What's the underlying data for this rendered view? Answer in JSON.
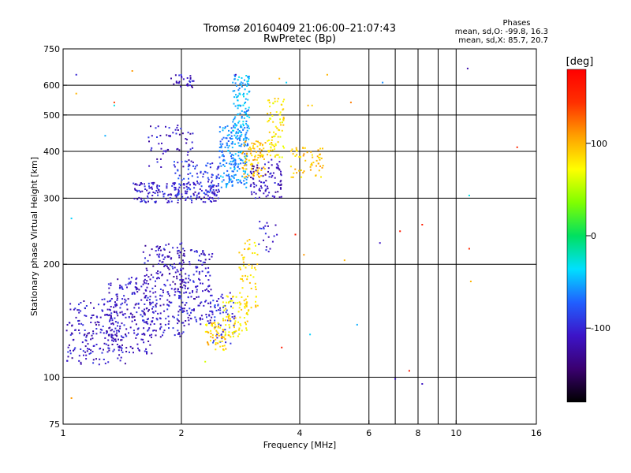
{
  "chart_data": {
    "type": "scatter",
    "title": "Tromsø 20160409 21:06:00–21:07:43",
    "subtitle": "RwPretec (Bp)",
    "xlabel": "Frequency [MHz]",
    "ylabel": "Stationary phase Virtual Height [km]",
    "x_scale": "log",
    "y_scale": "log",
    "xlim": [
      1,
      16
    ],
    "ylim": [
      75,
      750
    ],
    "x_ticks": [
      1,
      2,
      4,
      6,
      8,
      10,
      16
    ],
    "x_tick_labels": [
      "1",
      "2",
      "4",
      "6",
      "8",
      "10",
      "16"
    ],
    "x_gridlines": [
      2,
      4,
      6,
      7,
      8,
      9,
      10
    ],
    "y_ticks": [
      75,
      100,
      200,
      300,
      400,
      500,
      600,
      750
    ],
    "y_tick_labels": [
      "75",
      "100",
      "200",
      "300",
      "400",
      "500",
      "600",
      "750"
    ],
    "y_gridlines": [
      100,
      200,
      300,
      400,
      500,
      600
    ],
    "grid": true,
    "colorbar": {
      "label": "[deg]",
      "range": [
        -180,
        180
      ],
      "ticks": [
        100,
        0,
        -100
      ],
      "tick_labels": [
        "100",
        "0",
        "-100"
      ],
      "colors": [
        "#000000",
        "#3a0070",
        "#3c14c8",
        "#2060ff",
        "#00e0ff",
        "#00e060",
        "#80ff00",
        "#ffff00",
        "#ffa000",
        "#ff3000",
        "#ff0000"
      ]
    },
    "legend_title": "Phases",
    "stats": [
      "mean, sd,O: -99.8, 16.3",
      "mean, sd,X:  85.7, 20.7"
    ],
    "clusters": [
      {
        "name": "",
        "f": [
          1.02,
          1.45
        ],
        "h": [
          108,
          162
        ],
        "phase": -110,
        "count": 200
      },
      {
        "name": "",
        "f": [
          1.3,
          1.7
        ],
        "h": [
          115,
          185
        ],
        "phase": -108,
        "count": 200
      },
      {
        "name": "",
        "f": [
          1.6,
          2.05
        ],
        "h": [
          128,
          230
        ],
        "phase": -110,
        "count": 220
      },
      {
        "name": "",
        "f": [
          1.95,
          2.4
        ],
        "h": [
          138,
          220
        ],
        "phase": -108,
        "count": 160
      },
      {
        "name": "",
        "f": [
          2.35,
          2.75
        ],
        "h": [
          122,
          170
        ],
        "phase": -95,
        "count": 60
      },
      {
        "name": "",
        "f": [
          2.3,
          2.6
        ],
        "h": [
          118,
          140
        ],
        "phase": 90,
        "count": 60
      },
      {
        "name": "",
        "f": [
          2.55,
          2.95
        ],
        "h": [
          128,
          165
        ],
        "phase": 80,
        "count": 80
      },
      {
        "name": "",
        "f": [
          2.8,
          3.15
        ],
        "h": [
          150,
          235
        ],
        "phase": 85,
        "count": 60
      },
      {
        "name": "",
        "f": [
          3.15,
          3.5
        ],
        "h": [
          215,
          260
        ],
        "phase": -105,
        "count": 20
      },
      {
        "name": "",
        "f": [
          1.5,
          2.5
        ],
        "h": [
          292,
          330
        ],
        "phase": -105,
        "count": 180
      },
      {
        "name": "",
        "f": [
          1.9,
          2.5
        ],
        "h": [
          305,
          380
        ],
        "phase": -90,
        "count": 90
      },
      {
        "name": "",
        "f": [
          2.5,
          2.95
        ],
        "h": [
          320,
          470
        ],
        "phase": -60,
        "count": 200
      },
      {
        "name": "",
        "f": [
          2.7,
          2.98
        ],
        "h": [
          430,
          640
        ],
        "phase": -50,
        "count": 120
      },
      {
        "name": "",
        "f": [
          2.85,
          3.3
        ],
        "h": [
          340,
          430
        ],
        "phase": 95,
        "count": 90
      },
      {
        "name": "",
        "f": [
          3.0,
          3.6
        ],
        "h": [
          300,
          380
        ],
        "phase": -110,
        "count": 90
      },
      {
        "name": "",
        "f": [
          3.3,
          3.65
        ],
        "h": [
          380,
          560
        ],
        "phase": 80,
        "count": 80
      },
      {
        "name": "",
        "f": [
          3.8,
          4.6
        ],
        "h": [
          340,
          410
        ],
        "phase": 95,
        "count": 60
      },
      {
        "name": "",
        "f": [
          1.65,
          2.15
        ],
        "h": [
          360,
          470
        ],
        "phase": -110,
        "count": 60
      },
      {
        "name": "",
        "f": [
          1.85,
          2.15
        ],
        "h": [
          590,
          640
        ],
        "phase": -110,
        "count": 30
      }
    ],
    "outliers": [
      {
        "f": 1.08,
        "h": 640,
        "phase": -100
      },
      {
        "f": 1.08,
        "h": 570,
        "phase": 100
      },
      {
        "f": 1.35,
        "h": 540,
        "phase": 140
      },
      {
        "f": 1.35,
        "h": 530,
        "phase": -30
      },
      {
        "f": 1.5,
        "h": 655,
        "phase": 110
      },
      {
        "f": 1.28,
        "h": 440,
        "phase": -50
      },
      {
        "f": 2.75,
        "h": 640,
        "phase": -110
      },
      {
        "f": 3.55,
        "h": 625,
        "phase": 100
      },
      {
        "f": 3.7,
        "h": 610,
        "phase": -40
      },
      {
        "f": 4.3,
        "h": 530,
        "phase": 90
      },
      {
        "f": 4.7,
        "h": 640,
        "phase": 100
      },
      {
        "f": 5.4,
        "h": 540,
        "phase": 120
      },
      {
        "f": 6.5,
        "h": 610,
        "phase": -60
      },
      {
        "f": 10.7,
        "h": 665,
        "phase": -120
      },
      {
        "f": 14.3,
        "h": 410,
        "phase": 150
      },
      {
        "f": 10.8,
        "h": 305,
        "phase": -30
      },
      {
        "f": 7.2,
        "h": 245,
        "phase": 160
      },
      {
        "f": 8.2,
        "h": 255,
        "phase": 160
      },
      {
        "f": 6.4,
        "h": 228,
        "phase": -110
      },
      {
        "f": 5.2,
        "h": 205,
        "phase": 100
      },
      {
        "f": 4.1,
        "h": 212,
        "phase": 110
      },
      {
        "f": 3.9,
        "h": 240,
        "phase": 160
      },
      {
        "f": 3.6,
        "h": 120,
        "phase": 160
      },
      {
        "f": 4.25,
        "h": 130,
        "phase": -40
      },
      {
        "f": 5.6,
        "h": 138,
        "phase": -50
      },
      {
        "f": 7.6,
        "h": 104,
        "phase": 160
      },
      {
        "f": 7.0,
        "h": 99,
        "phase": -110
      },
      {
        "f": 8.2,
        "h": 96,
        "phase": -110
      },
      {
        "f": 10.8,
        "h": 220,
        "phase": 150
      },
      {
        "f": 10.9,
        "h": 180,
        "phase": 100
      },
      {
        "f": 1.05,
        "h": 88,
        "phase": 110
      },
      {
        "f": 1.05,
        "h": 265,
        "phase": -40
      },
      {
        "f": 2.3,
        "h": 110,
        "phase": 60
      },
      {
        "f": 4.2,
        "h": 530,
        "phase": 100
      }
    ]
  }
}
